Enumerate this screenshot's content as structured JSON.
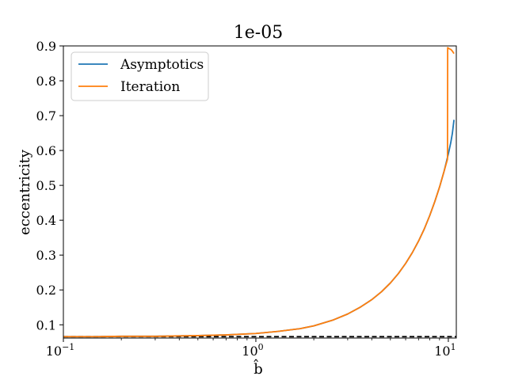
{
  "chart_data": {
    "type": "line",
    "title": "1e-05",
    "xlabel": "b̂",
    "ylabel": "eccentricity",
    "xscale": "log",
    "xlim": [
      0.1,
      11.0
    ],
    "ylim": [
      0.062,
      0.9
    ],
    "grid": false,
    "legend_position": "top-left",
    "xticks": [
      {
        "value": 0.1,
        "base": "10",
        "exp": "−1"
      },
      {
        "value": 1,
        "base": "10",
        "exp": "0"
      },
      {
        "value": 10,
        "base": "10",
        "exp": "1"
      }
    ],
    "yticks": [
      "0.1",
      "0.2",
      "0.3",
      "0.4",
      "0.5",
      "0.6",
      "0.7",
      "0.8",
      "0.9"
    ],
    "series": [
      {
        "name": "Asymptotics",
        "color": "#1f77b4",
        "x": [
          0.1,
          0.15,
          0.2,
          0.3,
          0.5,
          0.7,
          1.0,
          1.3,
          1.7,
          2.0,
          2.5,
          3.0,
          3.5,
          4.0,
          4.5,
          5.0,
          5.5,
          6.0,
          6.5,
          7.0,
          7.5,
          8.0,
          8.5,
          9.0,
          9.5,
          10.0,
          10.3,
          10.5,
          10.7
        ],
        "y": [
          0.066,
          0.066,
          0.067,
          0.067,
          0.069,
          0.071,
          0.075,
          0.081,
          0.089,
          0.097,
          0.113,
          0.131,
          0.151,
          0.172,
          0.195,
          0.22,
          0.247,
          0.276,
          0.307,
          0.34,
          0.375,
          0.413,
          0.453,
          0.495,
          0.54,
          0.59,
          0.623,
          0.65,
          0.688
        ]
      },
      {
        "name": "Iteration",
        "color": "#ff7f0e",
        "x": [
          0.1,
          0.15,
          0.2,
          0.3,
          0.5,
          0.7,
          1.0,
          1.3,
          1.7,
          2.0,
          2.5,
          3.0,
          3.5,
          4.0,
          4.5,
          5.0,
          5.5,
          6.0,
          6.5,
          7.0,
          7.5,
          8.0,
          8.5,
          9.0,
          9.5,
          9.9,
          9.92,
          10.1,
          10.3,
          10.5,
          10.7
        ],
        "y": [
          0.066,
          0.066,
          0.067,
          0.067,
          0.069,
          0.071,
          0.075,
          0.081,
          0.089,
          0.097,
          0.113,
          0.131,
          0.151,
          0.172,
          0.195,
          0.22,
          0.247,
          0.276,
          0.307,
          0.34,
          0.375,
          0.413,
          0.453,
          0.495,
          0.54,
          0.575,
          0.895,
          0.892,
          0.89,
          0.885,
          0.878
        ]
      }
    ],
    "reference_line": {
      "y": 0.066,
      "style": "dashed",
      "color": "#000000"
    }
  }
}
